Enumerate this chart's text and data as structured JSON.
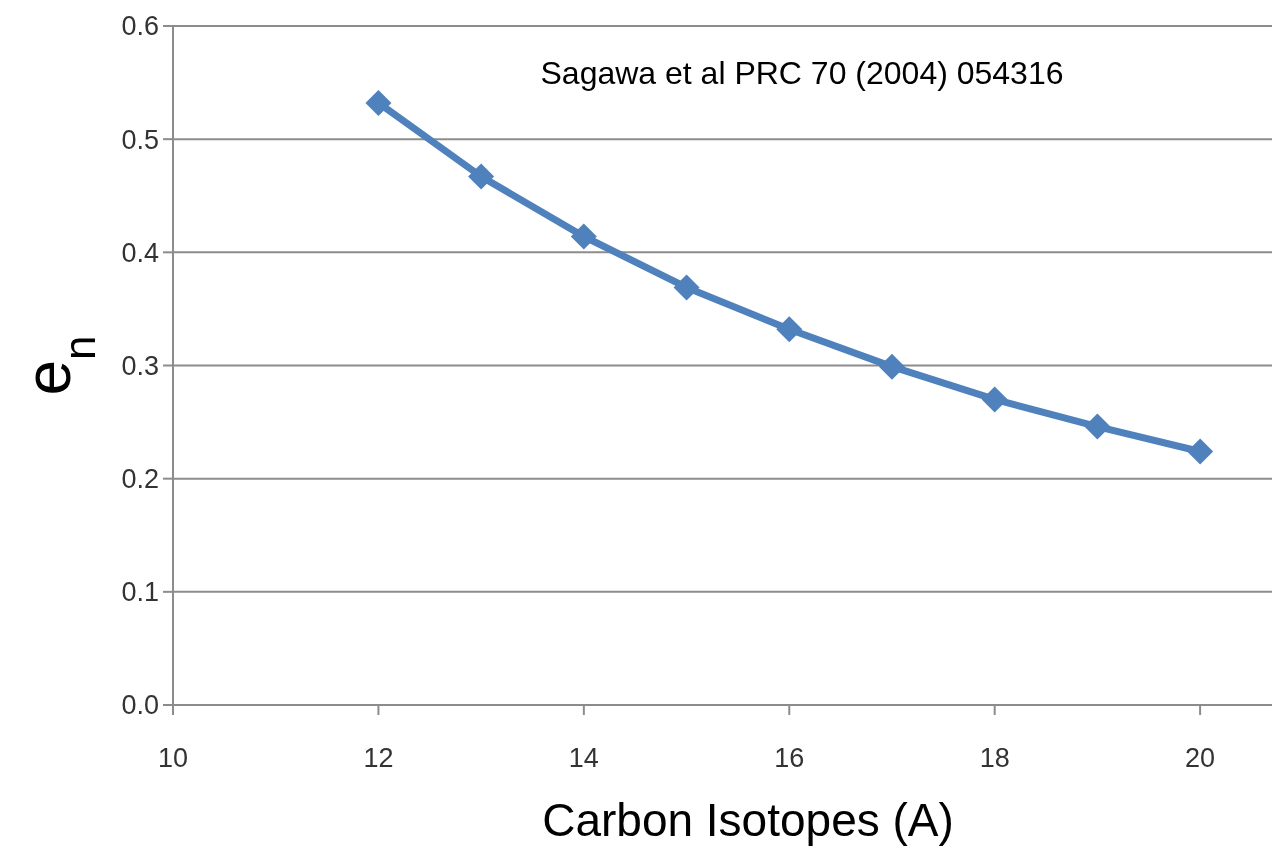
{
  "chart_data": {
    "type": "line",
    "xlabel": "Carbon Isotopes (A)",
    "ylabel": "e$_{n}$",
    "annotations": [
      "Sagawa et al PRC 70 (2004) 054316"
    ],
    "x": [
      12,
      13,
      14,
      15,
      16,
      17,
      18,
      19,
      20
    ],
    "series": [
      {
        "color": "#4f81bd",
        "values": [
          0.532,
          0.467,
          0.414,
          0.369,
          0.332,
          0.299,
          0.27,
          0.246,
          0.224
        ]
      }
    ],
    "xlim": [
      10,
      20.7
    ],
    "xticks": [
      10,
      12,
      14,
      16,
      18,
      20
    ],
    "ylim": [
      0,
      0.6
    ],
    "yticks": [
      {
        "value": 0,
        "label": "0.0"
      },
      {
        "value": 0.1,
        "label": "0.1"
      },
      {
        "value": 0.2,
        "label": "0.2"
      },
      {
        "value": 0.3,
        "label": "0.3"
      },
      {
        "value": 0.4,
        "label": "0.4"
      },
      {
        "value": 0.5,
        "label": "0.5"
      },
      {
        "value": 0.6,
        "label": "0.6"
      }
    ],
    "grid": "y",
    "marker": "diamond",
    "line_style": "solid"
  }
}
